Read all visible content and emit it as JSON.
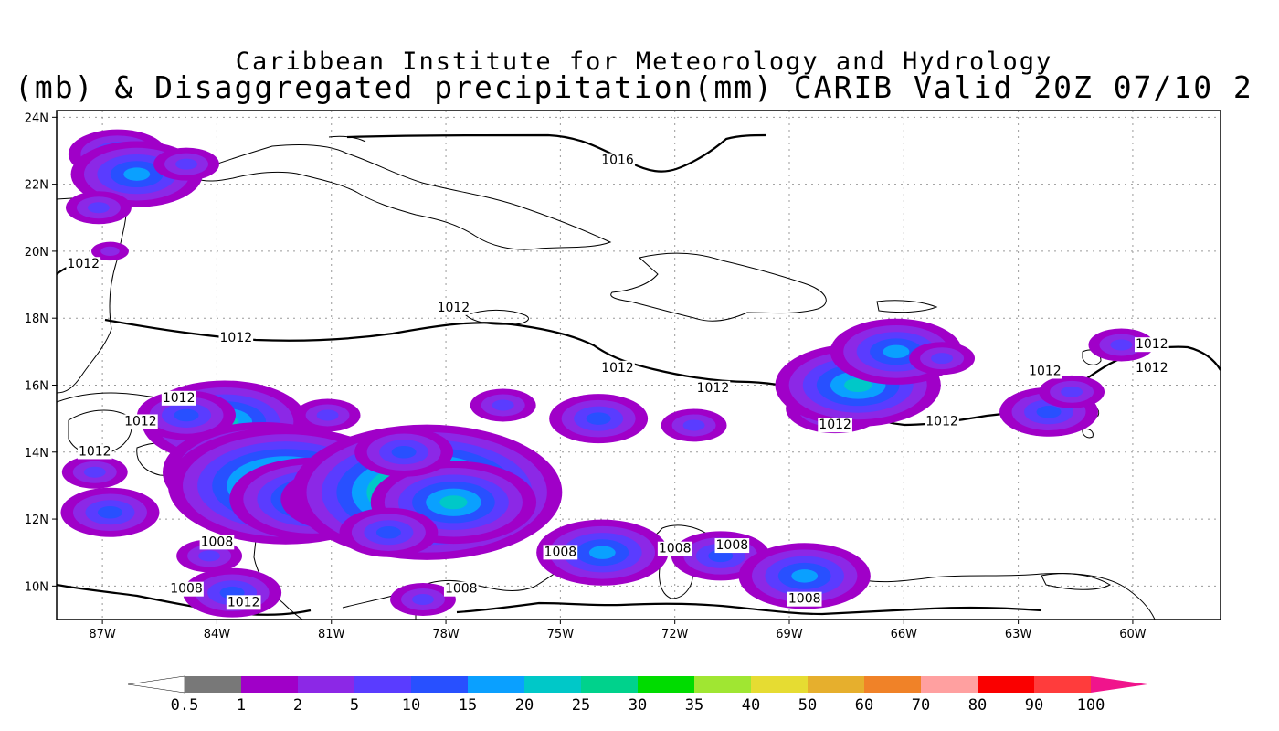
{
  "title_line1": "Caribbean Institute for Meteorology and Hydrology",
  "title_line2": "(mb) & Disaggregated precipitation(mm) CARIB Valid 20Z 07/10 2",
  "map": {
    "region": "CARIB",
    "lon_range": [
      -88.2,
      -57.7
    ],
    "lat_range": [
      9.0,
      24.2
    ],
    "grid": true,
    "lat_ticks": [
      {
        "lat": 24,
        "label": "24N"
      },
      {
        "lat": 22,
        "label": "22N"
      },
      {
        "lat": 20,
        "label": "20N"
      },
      {
        "lat": 18,
        "label": "18N"
      },
      {
        "lat": 16,
        "label": "16N"
      },
      {
        "lat": 14,
        "label": "14N"
      },
      {
        "lat": 12,
        "label": "12N"
      },
      {
        "lat": 10,
        "label": "10N"
      }
    ],
    "lon_ticks": [
      {
        "lon": -87,
        "label": "87W"
      },
      {
        "lon": -84,
        "label": "84W"
      },
      {
        "lon": -81,
        "label": "81W"
      },
      {
        "lon": -78,
        "label": "78W"
      },
      {
        "lon": -75,
        "label": "75W"
      },
      {
        "lon": -72,
        "label": "72W"
      },
      {
        "lon": -69,
        "label": "69W"
      },
      {
        "lon": -66,
        "label": "66W"
      },
      {
        "lon": -63,
        "label": "63W"
      },
      {
        "lon": -60,
        "label": "60W"
      }
    ],
    "isobar_labels": [
      {
        "lon": -73.5,
        "lat": 22.6,
        "label": "1016"
      },
      {
        "lon": -87.5,
        "lat": 19.5,
        "label": "1012"
      },
      {
        "lon": -77.8,
        "lat": 18.2,
        "label": "1012"
      },
      {
        "lon": -83.5,
        "lat": 17.3,
        "label": "1012"
      },
      {
        "lon": -73.5,
        "lat": 16.4,
        "label": "1012"
      },
      {
        "lon": -71.0,
        "lat": 15.8,
        "label": "1012"
      },
      {
        "lon": -85.0,
        "lat": 15.5,
        "label": "1012"
      },
      {
        "lon": -86.0,
        "lat": 14.8,
        "label": "1012"
      },
      {
        "lon": -87.2,
        "lat": 13.9,
        "label": "1012"
      },
      {
        "lon": -67.8,
        "lat": 14.7,
        "label": "1012"
      },
      {
        "lon": -65.0,
        "lat": 14.8,
        "label": "1012"
      },
      {
        "lon": -62.3,
        "lat": 16.3,
        "label": "1012"
      },
      {
        "lon": -59.5,
        "lat": 17.1,
        "label": "1012"
      },
      {
        "lon": -59.5,
        "lat": 16.4,
        "label": "1012"
      },
      {
        "lon": -84.0,
        "lat": 11.2,
        "label": "1008"
      },
      {
        "lon": -75.0,
        "lat": 10.9,
        "label": "1008"
      },
      {
        "lon": -72.0,
        "lat": 11.0,
        "label": "1008"
      },
      {
        "lon": -70.5,
        "lat": 11.1,
        "label": "1008"
      },
      {
        "lon": -84.8,
        "lat": 9.8,
        "label": "1008"
      },
      {
        "lon": -77.6,
        "lat": 9.8,
        "label": "1008"
      },
      {
        "lon": -68.6,
        "lat": 9.5,
        "label": "1008"
      },
      {
        "lon": -83.3,
        "lat": 9.4,
        "label": "1012"
      }
    ],
    "precip_cells": [
      {
        "lon": -86.6,
        "lat": 22.9,
        "mm": 10
      },
      {
        "lon": -86.1,
        "lat": 22.3,
        "mm": 15
      },
      {
        "lon": -84.8,
        "lat": 22.6,
        "mm": 5
      },
      {
        "lon": -87.1,
        "lat": 21.3,
        "mm": 5
      },
      {
        "lon": -86.8,
        "lat": 20.0,
        "mm": 2
      },
      {
        "lon": -83.8,
        "lat": 14.9,
        "mm": 20
      },
      {
        "lon": -84.8,
        "lat": 15.1,
        "mm": 10
      },
      {
        "lon": -82.8,
        "lat": 13.4,
        "mm": 25
      },
      {
        "lon": -82.2,
        "lat": 13.0,
        "mm": 30
      },
      {
        "lon": -81.5,
        "lat": 12.6,
        "mm": 20
      },
      {
        "lon": -80.6,
        "lat": 12.6,
        "mm": 15
      },
      {
        "lon": -78.9,
        "lat": 12.9,
        "mm": 25
      },
      {
        "lon": -78.5,
        "lat": 12.8,
        "mm": 35
      },
      {
        "lon": -77.8,
        "lat": 12.5,
        "mm": 20
      },
      {
        "lon": -79.1,
        "lat": 14.0,
        "mm": 10
      },
      {
        "lon": -81.1,
        "lat": 15.1,
        "mm": 5
      },
      {
        "lon": -79.5,
        "lat": 11.6,
        "mm": 10
      },
      {
        "lon": -86.8,
        "lat": 12.2,
        "mm": 10
      },
      {
        "lon": -87.2,
        "lat": 13.4,
        "mm": 5
      },
      {
        "lon": -84.2,
        "lat": 10.9,
        "mm": 5
      },
      {
        "lon": -83.6,
        "lat": 9.8,
        "mm": 10
      },
      {
        "lon": -73.9,
        "lat": 11.0,
        "mm": 15
      },
      {
        "lon": -70.8,
        "lat": 10.9,
        "mm": 10
      },
      {
        "lon": -68.6,
        "lat": 10.3,
        "mm": 15
      },
      {
        "lon": -78.6,
        "lat": 9.6,
        "mm": 5
      },
      {
        "lon": -67.8,
        "lat": 15.3,
        "mm": 10
      },
      {
        "lon": -67.2,
        "lat": 16.0,
        "mm": 20
      },
      {
        "lon": -66.2,
        "lat": 17.0,
        "mm": 15
      },
      {
        "lon": -65.0,
        "lat": 16.8,
        "mm": 5
      },
      {
        "lon": -62.2,
        "lat": 15.2,
        "mm": 10
      },
      {
        "lon": -61.6,
        "lat": 15.8,
        "mm": 5
      },
      {
        "lon": -60.3,
        "lat": 17.2,
        "mm": 5
      },
      {
        "lon": -74.0,
        "lat": 15.0,
        "mm": 10
      },
      {
        "lon": -71.5,
        "lat": 14.8,
        "mm": 5
      },
      {
        "lon": -76.5,
        "lat": 15.4,
        "mm": 5
      }
    ]
  },
  "colorbar": {
    "labels": [
      "0.5",
      "1",
      "2",
      "5",
      "10",
      "15",
      "20",
      "25",
      "30",
      "35",
      "40",
      "50",
      "60",
      "70",
      "80",
      "90",
      "100"
    ],
    "colors": [
      "#ffffff",
      "#787878",
      "#a000c8",
      "#8c28e6",
      "#5a3cff",
      "#2850ff",
      "#0aa0ff",
      "#00c8c8",
      "#00d28c",
      "#00dc00",
      "#a0e632",
      "#e6dc32",
      "#e6af2d",
      "#f08228",
      "#ffa0a0",
      "#fa0000",
      "#ff3c3c",
      "#f0148c"
    ]
  }
}
